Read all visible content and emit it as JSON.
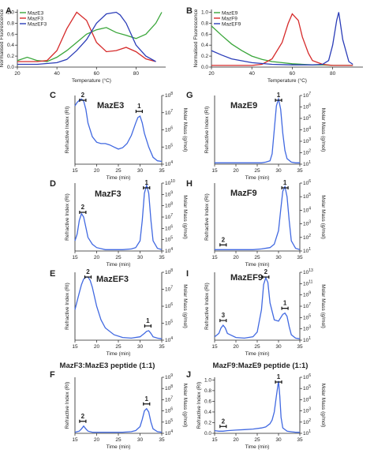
{
  "chart_data": [
    {
      "panel": "A",
      "type": "line",
      "xlabel": "Temperature (°C)",
      "ylabel": "Normalised Fluorescence",
      "xlim": [
        20,
        95
      ],
      "ylim": [
        0,
        1.05
      ],
      "xticks": [
        "20",
        "40",
        "60",
        "80"
      ],
      "yticks": [
        "0.0",
        "0.2",
        "0.4",
        "0.6",
        "0.8",
        "1.0"
      ],
      "legend": "top-left",
      "series": [
        {
          "name": "MazE3",
          "color": "#3aa63a",
          "x": [
            20,
            25,
            30,
            35,
            40,
            45,
            50,
            55,
            60,
            65,
            70,
            75,
            80,
            85,
            90,
            93
          ],
          "y": [
            0.12,
            0.18,
            0.12,
            0.1,
            0.18,
            0.3,
            0.45,
            0.6,
            0.68,
            0.72,
            0.63,
            0.58,
            0.52,
            0.6,
            0.8,
            1.0
          ]
        },
        {
          "name": "MazF3",
          "color": "#d62b2b",
          "x": [
            20,
            30,
            35,
            40,
            45,
            50,
            55,
            60,
            65,
            70,
            75,
            80,
            85,
            90
          ],
          "y": [
            0.1,
            0.1,
            0.12,
            0.3,
            0.7,
            1.0,
            0.85,
            0.45,
            0.28,
            0.3,
            0.36,
            0.28,
            0.15,
            0.1
          ]
        },
        {
          "name": "MazEF3",
          "color": "#2b3db8",
          "x": [
            20,
            30,
            40,
            45,
            50,
            55,
            60,
            65,
            70,
            72,
            75,
            80,
            85,
            90
          ],
          "y": [
            0.05,
            0.05,
            0.08,
            0.14,
            0.3,
            0.5,
            0.8,
            0.97,
            1.0,
            0.95,
            0.8,
            0.4,
            0.2,
            0.1
          ]
        }
      ]
    },
    {
      "panel": "B",
      "type": "line",
      "xlabel": "Temperature (°C)",
      "ylabel": "Normalised Fluorescence",
      "xlim": [
        20,
        95
      ],
      "ylim": [
        0,
        1.05
      ],
      "xticks": [
        "20",
        "40",
        "60",
        "80"
      ],
      "yticks": [
        "0.0",
        "0.2",
        "0.4",
        "0.6",
        "0.8",
        "1.0"
      ],
      "legend": "top-left",
      "series": [
        {
          "name": "MazE9",
          "color": "#3aa63a",
          "x": [
            20,
            25,
            30,
            35,
            40,
            45,
            50,
            55,
            60,
            65,
            70,
            75,
            80,
            85,
            90
          ],
          "y": [
            0.75,
            0.58,
            0.42,
            0.3,
            0.2,
            0.14,
            0.1,
            0.08,
            0.06,
            0.05,
            0.04,
            0.04,
            0.03,
            0.03,
            0.03
          ]
        },
        {
          "name": "MazF9",
          "color": "#d62b2b",
          "x": [
            20,
            30,
            40,
            45,
            50,
            55,
            58,
            60,
            63,
            65,
            68,
            70,
            75,
            80,
            85,
            90
          ],
          "y": [
            0.03,
            0.03,
            0.03,
            0.05,
            0.15,
            0.45,
            0.8,
            0.97,
            0.85,
            0.55,
            0.25,
            0.12,
            0.05,
            0.03,
            0.03,
            0.03
          ]
        },
        {
          "name": "MazEF9",
          "color": "#2b3db8",
          "x": [
            20,
            25,
            30,
            40,
            50,
            60,
            70,
            75,
            78,
            80,
            82,
            83,
            85,
            88,
            90
          ],
          "y": [
            0.3,
            0.22,
            0.15,
            0.08,
            0.05,
            0.04,
            0.04,
            0.05,
            0.12,
            0.4,
            0.85,
            1.0,
            0.5,
            0.1,
            0.05
          ]
        }
      ]
    },
    {
      "panel": "C",
      "type": "line",
      "title": "MazE3",
      "xlabel": "Time (min)",
      "ylabel": "Refractive Index (RI)",
      "y2label": "Molar Mass (g/mol)",
      "xlim": [
        15,
        35
      ],
      "ylim": [
        0,
        1
      ],
      "xticks": [
        "15",
        "20",
        "25",
        "30",
        "35"
      ],
      "y2ticks": [
        "10^4",
        "10^5",
        "10^6",
        "10^7",
        "10^8"
      ],
      "peaks": [
        {
          "label": "2",
          "x": 16.8
        },
        {
          "label": "1",
          "x": 29.8
        }
      ],
      "series": [
        {
          "name": "RI",
          "color": "#4169e1",
          "x": [
            15,
            15.5,
            16,
            16.5,
            17,
            17.5,
            18,
            19,
            20,
            21,
            22,
            23,
            24,
            25,
            26,
            27,
            28,
            29,
            29.5,
            30,
            30.5,
            31,
            32,
            33,
            34,
            35
          ],
          "y": [
            0.85,
            0.9,
            0.93,
            0.95,
            0.92,
            0.8,
            0.6,
            0.4,
            0.32,
            0.3,
            0.3,
            0.28,
            0.25,
            0.22,
            0.24,
            0.3,
            0.42,
            0.6,
            0.68,
            0.7,
            0.6,
            0.45,
            0.25,
            0.1,
            0.05,
            0.04
          ]
        }
      ]
    },
    {
      "panel": "D",
      "type": "line",
      "title": "MazF3",
      "xlabel": "Time (min)",
      "ylabel": "Refractive Index (RI)",
      "y2label": "Molar Mass (g/mol)",
      "xlim": [
        15,
        35
      ],
      "ylim": [
        0,
        1
      ],
      "xticks": [
        "15",
        "20",
        "25",
        "30",
        "35"
      ],
      "y2ticks": [
        "10^4",
        "10^5",
        "10^6",
        "10^7",
        "10^8",
        "10^9",
        "10^10"
      ],
      "peaks": [
        {
          "label": "2",
          "x": 16.8
        },
        {
          "label": "1",
          "x": 31.5
        }
      ],
      "series": [
        {
          "name": "RI",
          "color": "#4169e1",
          "x": [
            15,
            15.5,
            16,
            16.5,
            17,
            17.5,
            18,
            19,
            20,
            22,
            24,
            26,
            28,
            29,
            30,
            30.5,
            31,
            31.5,
            32,
            32.5,
            33,
            34,
            35
          ],
          "y": [
            0.15,
            0.25,
            0.45,
            0.55,
            0.5,
            0.35,
            0.2,
            0.1,
            0.05,
            0.02,
            0.02,
            0.02,
            0.03,
            0.05,
            0.15,
            0.45,
            0.85,
            0.97,
            0.85,
            0.45,
            0.15,
            0.04,
            0.02
          ]
        }
      ]
    },
    {
      "panel": "E",
      "type": "line",
      "title": "MazEF3",
      "xlabel": "Time (min)",
      "ylabel": "Refractive Index (RI)",
      "y2label": "Molar Mass (g/mol)",
      "xlim": [
        15,
        35
      ],
      "ylim": [
        0,
        1
      ],
      "xticks": [
        "15",
        "20",
        "25",
        "30",
        "35"
      ],
      "y2ticks": [
        "10^4",
        "10^5",
        "10^6",
        "10^7",
        "10^8"
      ],
      "peaks": [
        {
          "label": "2",
          "x": 18.0
        },
        {
          "label": "1",
          "x": 31.8
        }
      ],
      "series": [
        {
          "name": "RI",
          "color": "#4169e1",
          "x": [
            15,
            16,
            16.5,
            17,
            17.5,
            18,
            18.5,
            19,
            20,
            21,
            22,
            24,
            26,
            28,
            30,
            31,
            31.5,
            32,
            32.5,
            33,
            34,
            35
          ],
          "y": [
            0.45,
            0.7,
            0.82,
            0.9,
            0.93,
            0.93,
            0.88,
            0.78,
            0.5,
            0.3,
            0.18,
            0.08,
            0.04,
            0.03,
            0.05,
            0.1,
            0.13,
            0.14,
            0.1,
            0.05,
            0.03,
            0.02
          ]
        }
      ]
    },
    {
      "panel": "F",
      "type": "line",
      "title": "MazF3:MazE3 peptide (1:1)",
      "xlabel": "Time (min)",
      "ylabel": "Refractive Index (RI)",
      "y2label": "Molar Mass (g/mol)",
      "xlim": [
        15,
        35
      ],
      "ylim": [
        0,
        1
      ],
      "xticks": [
        "15",
        "20",
        "25",
        "30",
        "35"
      ],
      "y2ticks": [
        "10^4",
        "10^5",
        "10^6",
        "10^7",
        "10^8",
        "10^9"
      ],
      "peaks": [
        {
          "label": "2",
          "x": 16.8
        },
        {
          "label": "1",
          "x": 31.5
        }
      ],
      "series": [
        {
          "name": "RI",
          "color": "#4169e1",
          "x": [
            15,
            16,
            16.5,
            17,
            17.5,
            18,
            19,
            20,
            22,
            24,
            26,
            28,
            29,
            30,
            30.5,
            31,
            31.5,
            32,
            32.5,
            33,
            34,
            35
          ],
          "y": [
            0.02,
            0.04,
            0.08,
            0.13,
            0.08,
            0.04,
            0.02,
            0.02,
            0.02,
            0.02,
            0.02,
            0.03,
            0.05,
            0.12,
            0.25,
            0.4,
            0.44,
            0.38,
            0.2,
            0.08,
            0.03,
            0.02
          ]
        }
      ]
    },
    {
      "panel": "G",
      "type": "line",
      "title": "MazE9",
      "xlabel": "Time (min)",
      "ylabel": "Refractive Index (RI)",
      "y2label": "Molar Mass (g/mol)",
      "xlim": [
        15,
        35
      ],
      "ylim": [
        0,
        1
      ],
      "xticks": [
        "15",
        "20",
        "25",
        "30",
        "35"
      ],
      "y2ticks": [
        "10^1",
        "10^2",
        "10^3",
        "10^4",
        "10^5",
        "10^6",
        "10^7"
      ],
      "peaks": [
        {
          "label": "1",
          "x": 30.0
        }
      ],
      "series": [
        {
          "name": "RI",
          "color": "#4169e1",
          "x": [
            15,
            18,
            20,
            22,
            24,
            26,
            27,
            28,
            28.5,
            29,
            29.5,
            30,
            30.5,
            31,
            31.5,
            32,
            33,
            34,
            35
          ],
          "y": [
            0.02,
            0.02,
            0.02,
            0.02,
            0.02,
            0.02,
            0.03,
            0.05,
            0.15,
            0.5,
            0.85,
            0.95,
            0.8,
            0.45,
            0.2,
            0.08,
            0.03,
            0.02,
            0.02
          ]
        }
      ]
    },
    {
      "panel": "H",
      "type": "line",
      "title": "MazF9",
      "xlabel": "Time (min)",
      "ylabel": "Refractive Index (RI)",
      "y2label": "Molar Mass (g/mol)",
      "xlim": [
        15,
        35
      ],
      "ylim": [
        0,
        1
      ],
      "xticks": [
        "15",
        "20",
        "25",
        "30",
        "35"
      ],
      "y2ticks": [
        "10^1",
        "10^2",
        "10^3",
        "10^4",
        "10^5",
        "10^6"
      ],
      "peaks": [
        {
          "label": "2",
          "x": 17.0
        },
        {
          "label": "1",
          "x": 31.5
        }
      ],
      "series": [
        {
          "name": "RI",
          "color": "#4169e1",
          "x": [
            15,
            17,
            20,
            22,
            24,
            26,
            28,
            29,
            30,
            30.5,
            31,
            31.5,
            32,
            32.5,
            33,
            34,
            35
          ],
          "y": [
            0.02,
            0.02,
            0.02,
            0.02,
            0.02,
            0.03,
            0.05,
            0.1,
            0.3,
            0.6,
            0.88,
            0.95,
            0.8,
            0.45,
            0.15,
            0.04,
            0.02
          ]
        }
      ]
    },
    {
      "panel": "I",
      "type": "line",
      "title": "MazEF9",
      "xlabel": "Time (min)",
      "ylabel": "Refractive Index (RI)",
      "y2label": "Molar Mass (g/mol)",
      "xlim": [
        15,
        35
      ],
      "ylim": [
        0,
        1
      ],
      "xticks": [
        "15",
        "20",
        "25",
        "30",
        "35"
      ],
      "y2ticks": [
        "10^1",
        "10^3",
        "10^5",
        "10^7",
        "10^9",
        "10^11",
        "10^13"
      ],
      "peaks": [
        {
          "label": "3",
          "x": 17.0
        },
        {
          "label": "2",
          "x": 27.0
        },
        {
          "label": "1",
          "x": 31.5
        }
      ],
      "series": [
        {
          "name": "RI",
          "color": "#4169e1",
          "x": [
            15,
            16,
            16.5,
            17,
            17.5,
            18,
            20,
            22,
            24,
            25,
            26,
            26.5,
            27,
            27.5,
            28,
            29,
            30,
            31,
            31.5,
            32,
            32.5,
            33,
            34,
            35
          ],
          "y": [
            0.05,
            0.1,
            0.18,
            0.22,
            0.18,
            0.1,
            0.04,
            0.03,
            0.05,
            0.12,
            0.45,
            0.82,
            0.92,
            0.85,
            0.55,
            0.3,
            0.28,
            0.38,
            0.4,
            0.35,
            0.2,
            0.08,
            0.03,
            0.02
          ]
        }
      ]
    },
    {
      "panel": "J",
      "type": "line",
      "title": "MazF9:MazE9 peptide (1:1)",
      "xlabel": "Time (min)",
      "ylabel": "Refractive Index (RI)",
      "y2label": "Molar Mass (g/mol)",
      "xlim": [
        15,
        35
      ],
      "ylim": [
        0,
        1.05
      ],
      "xticks": [
        "15",
        "20",
        "25",
        "30",
        "35"
      ],
      "yticks": [
        "0.0",
        "0.2",
        "0.4",
        "0.6",
        "0.8",
        "1.0"
      ],
      "y2ticks": [
        "10^1",
        "10^2",
        "10^3",
        "10^4",
        "10^5",
        "10^6"
      ],
      "peaks": [
        {
          "label": "2",
          "x": 17.0
        },
        {
          "label": "1",
          "x": 30.0
        }
      ],
      "series": [
        {
          "name": "RI",
          "color": "#4169e1",
          "x": [
            15,
            16,
            17,
            18,
            20,
            22,
            24,
            26,
            27,
            28,
            28.5,
            29,
            29.5,
            30,
            30.3,
            30.6,
            31,
            32,
            33,
            34,
            35
          ],
          "y": [
            0.05,
            0.04,
            0.04,
            0.05,
            0.06,
            0.07,
            0.08,
            0.1,
            0.12,
            0.18,
            0.25,
            0.4,
            0.7,
            0.98,
            0.7,
            0.3,
            0.1,
            0.04,
            0.03,
            0.02,
            0.02
          ]
        }
      ]
    }
  ]
}
